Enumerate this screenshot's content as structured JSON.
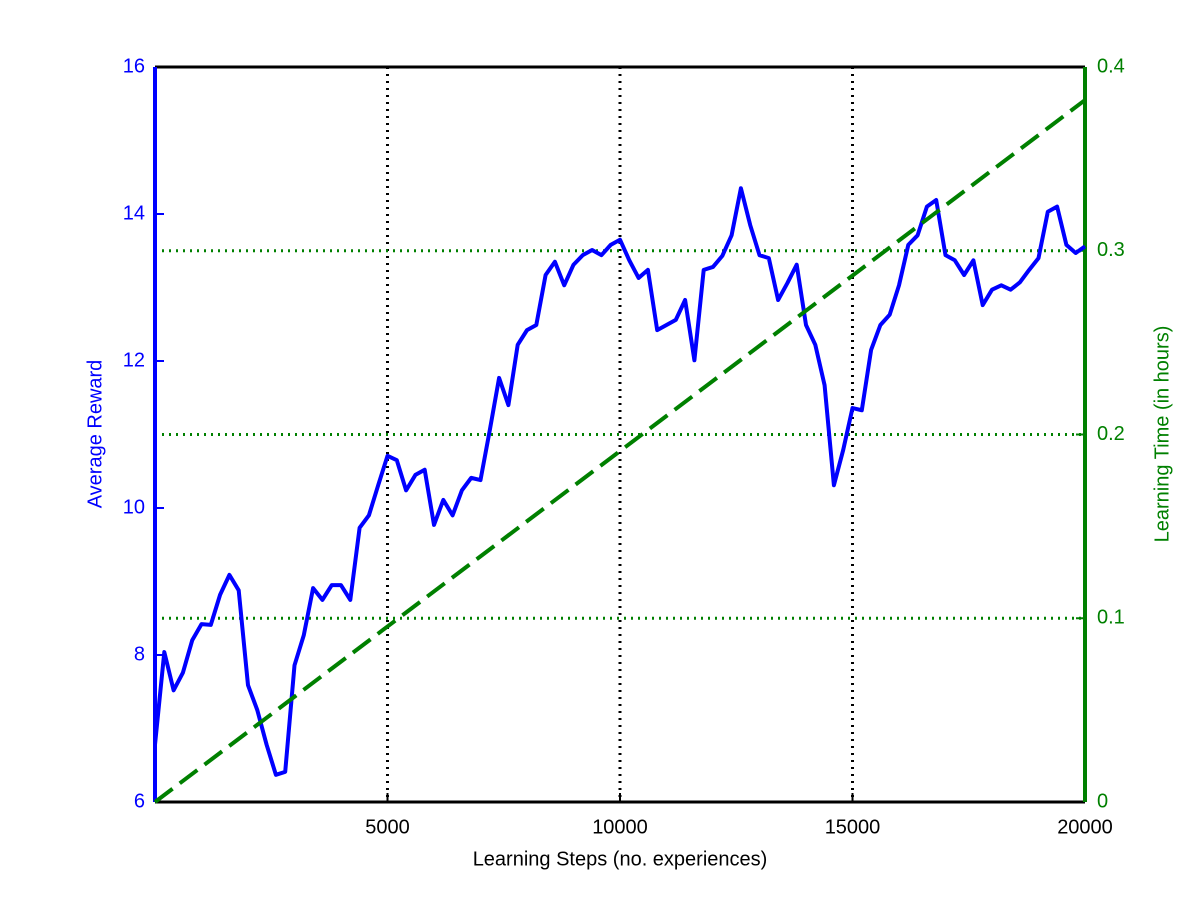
{
  "chart_data": {
    "type": "line",
    "xlabel": "Learning Steps (no. experiences)",
    "ylabel": "Average Reward",
    "y2label": "Learning Time (in hours)",
    "xlim": [
      0,
      20000
    ],
    "xticks": [
      5000,
      10000,
      15000,
      20000
    ],
    "ylim": [
      6,
      16
    ],
    "yticks": [
      6,
      8,
      10,
      12,
      14,
      16
    ],
    "y2lim": [
      0,
      0.4
    ],
    "y2ticks": [
      0,
      0.1,
      0.2,
      0.3,
      0.4
    ],
    "xgrid": true,
    "y2grid": true,
    "ycolor": "#0000ff",
    "y2color": "#008000",
    "series": [
      {
        "color": "#0000ff",
        "x": [
          0,
          200,
          400,
          600,
          800,
          1000,
          1200,
          1400,
          1600,
          1800,
          2000,
          2200,
          2400,
          2600,
          2800,
          3000,
          3200,
          3400,
          3600,
          3800,
          4000,
          4200,
          4400,
          4600,
          4800,
          5000,
          5200,
          5400,
          5600,
          5800,
          6000,
          6200,
          6400,
          6600,
          6800,
          7000,
          7200,
          7400,
          7600,
          7800,
          8000,
          8200,
          8400,
          8600,
          8800,
          9000,
          9200,
          9400,
          9600,
          9800,
          10000,
          10200,
          10400,
          10600,
          10800,
          11000,
          11200,
          11400,
          11600,
          11800,
          12000,
          12200,
          12400,
          12600,
          12800,
          13000,
          13200,
          13400,
          13600,
          13800,
          14000,
          14200,
          14400,
          14600,
          14800,
          15000,
          15200,
          15400,
          15600,
          15800,
          16000,
          16200,
          16400,
          16600,
          16800,
          17000,
          17200,
          17400,
          17600,
          17800,
          18000,
          18200,
          18400,
          18600,
          18800,
          19000,
          19200,
          19400,
          19600,
          19800,
          20000
        ],
        "values": [
          6.78,
          8.04,
          7.52,
          7.76,
          8.2,
          8.42,
          8.41,
          8.82,
          9.09,
          8.88,
          7.59,
          7.25,
          6.78,
          6.37,
          6.41,
          7.86,
          8.27,
          8.91,
          8.75,
          8.95,
          8.95,
          8.75,
          9.73,
          9.9,
          10.31,
          10.71,
          10.65,
          10.24,
          10.45,
          10.52,
          9.77,
          10.11,
          9.9,
          10.24,
          10.41,
          10.38,
          11.06,
          11.77,
          11.4,
          12.22,
          12.42,
          12.49,
          13.17,
          13.35,
          13.03,
          13.31,
          13.44,
          13.51,
          13.44,
          13.58,
          13.65,
          13.37,
          13.13,
          13.24,
          12.42,
          12.49,
          12.56,
          12.83,
          12.01,
          13.24,
          13.28,
          13.43,
          13.71,
          14.35,
          13.85,
          13.44,
          13.4,
          12.83,
          13.06,
          13.31,
          12.49,
          12.22,
          11.67,
          10.31,
          10.79,
          11.36,
          11.33,
          12.15,
          12.49,
          12.63,
          13.03,
          13.58,
          13.71,
          14.1,
          14.19,
          13.44,
          13.37,
          13.17,
          13.37,
          12.76,
          12.97,
          13.03,
          12.97,
          13.07,
          13.24,
          13.4,
          14.03,
          14.1,
          13.58,
          13.47,
          13.56
        ]
      },
      {
        "color": "#008000",
        "axis": "y2",
        "dashed": true,
        "x": [
          0,
          20000
        ],
        "values": [
          0,
          0.382
        ]
      }
    ]
  }
}
